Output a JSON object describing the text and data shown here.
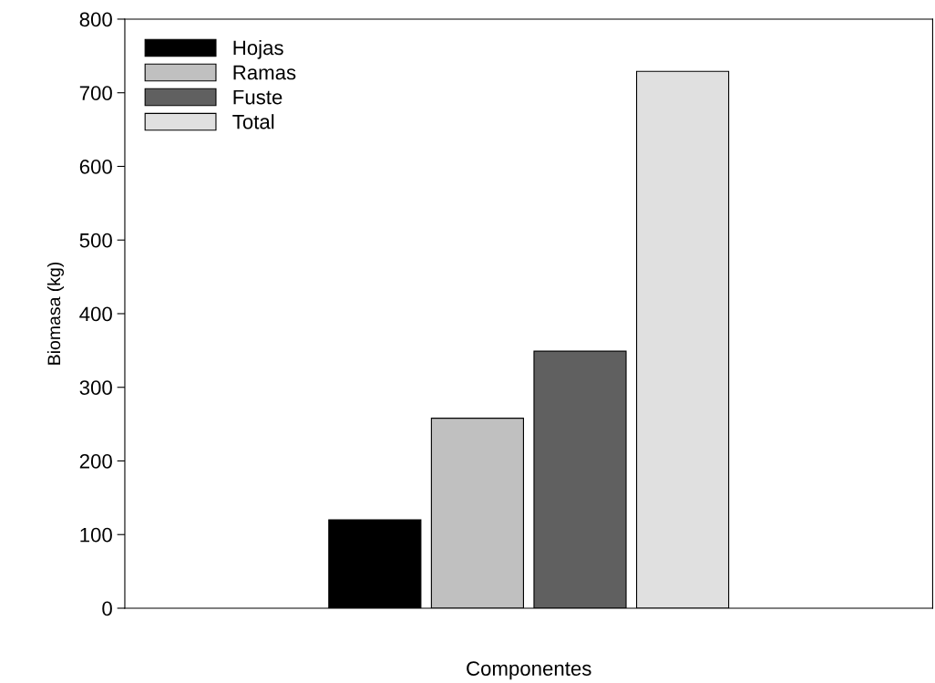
{
  "chart_data": {
    "type": "bar",
    "xlabel": "Componentes",
    "ylabel": "Biomasa (kg)",
    "categories": [
      null
    ],
    "series": [
      {
        "name": "Hojas",
        "color": "#000000",
        "values": [
          120
        ]
      },
      {
        "name": "Ramas",
        "color": "#c0c0c0",
        "values": [
          258
        ]
      },
      {
        "name": "Fuste",
        "color": "#606060",
        "values": [
          349
        ]
      },
      {
        "name": "Total",
        "color": "#e0e0e0",
        "values": [
          729
        ]
      }
    ],
    "ylim": [
      0,
      800
    ],
    "yticks": [
      0,
      100,
      200,
      300,
      400,
      500,
      600,
      700,
      800
    ],
    "grid": false,
    "legend": "top left"
  }
}
